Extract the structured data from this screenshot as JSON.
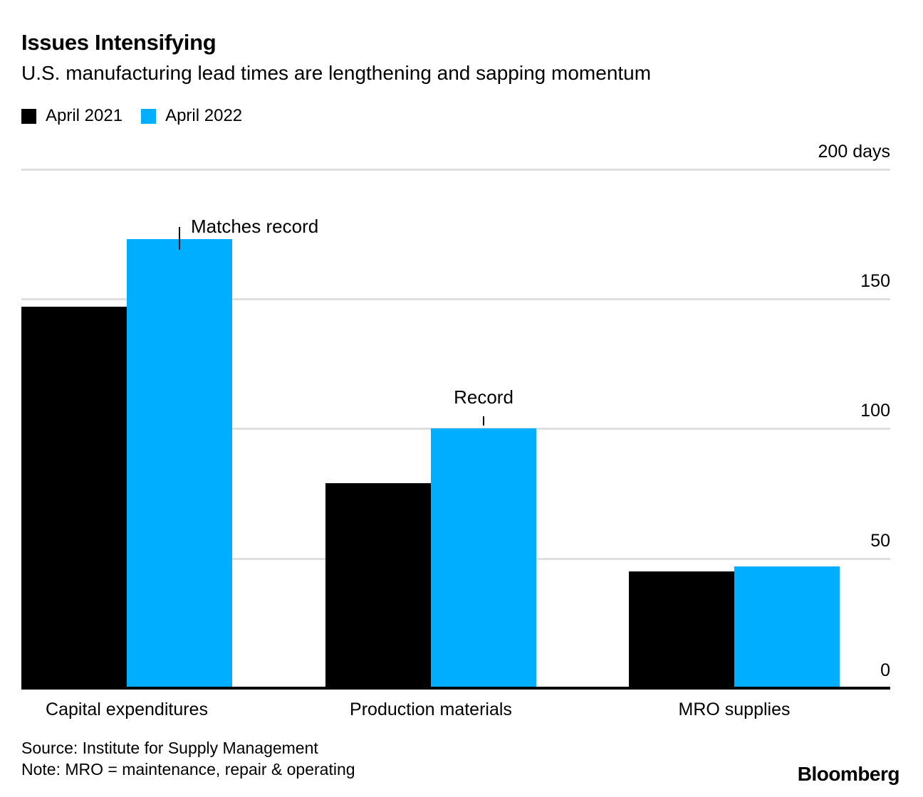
{
  "header": {
    "title": "Issues Intensifying",
    "subtitle": "U.S. manufacturing lead times are lengthening and sapping momentum"
  },
  "legend": [
    {
      "label": "April 2021",
      "color": "#000000"
    },
    {
      "label": "April 2022",
      "color": "#00aeff"
    }
  ],
  "chart_data": {
    "type": "bar",
    "title": "Issues Intensifying",
    "subtitle": "U.S. manufacturing lead times are lengthening and sapping momentum",
    "unit": "days",
    "categories": [
      "Capital expenditures",
      "Production materials",
      "MRO supplies"
    ],
    "series": [
      {
        "name": "April 2021",
        "color": "#000000",
        "values": [
          147,
          79,
          45
        ]
      },
      {
        "name": "April 2022",
        "color": "#00aeff",
        "values": [
          173,
          100,
          47
        ]
      }
    ],
    "ylim": [
      0,
      200
    ],
    "yticks": [
      {
        "value": 200,
        "label": "200 days"
      },
      {
        "value": 150,
        "label": "150"
      },
      {
        "value": 100,
        "label": "100"
      },
      {
        "value": 50,
        "label": "50"
      },
      {
        "value": 0,
        "label": "0"
      }
    ],
    "grid": "horizontal",
    "legend_position": "top-left",
    "annotations": [
      {
        "text": "Matches record",
        "category": 0,
        "series": 1,
        "placement": "right"
      },
      {
        "text": "Record",
        "category": 1,
        "series": 1,
        "placement": "above"
      }
    ]
  },
  "footer": {
    "source": "Source: Institute for Supply Management",
    "note": "Note: MRO = maintenance, repair & operating",
    "brand": "Bloomberg"
  }
}
